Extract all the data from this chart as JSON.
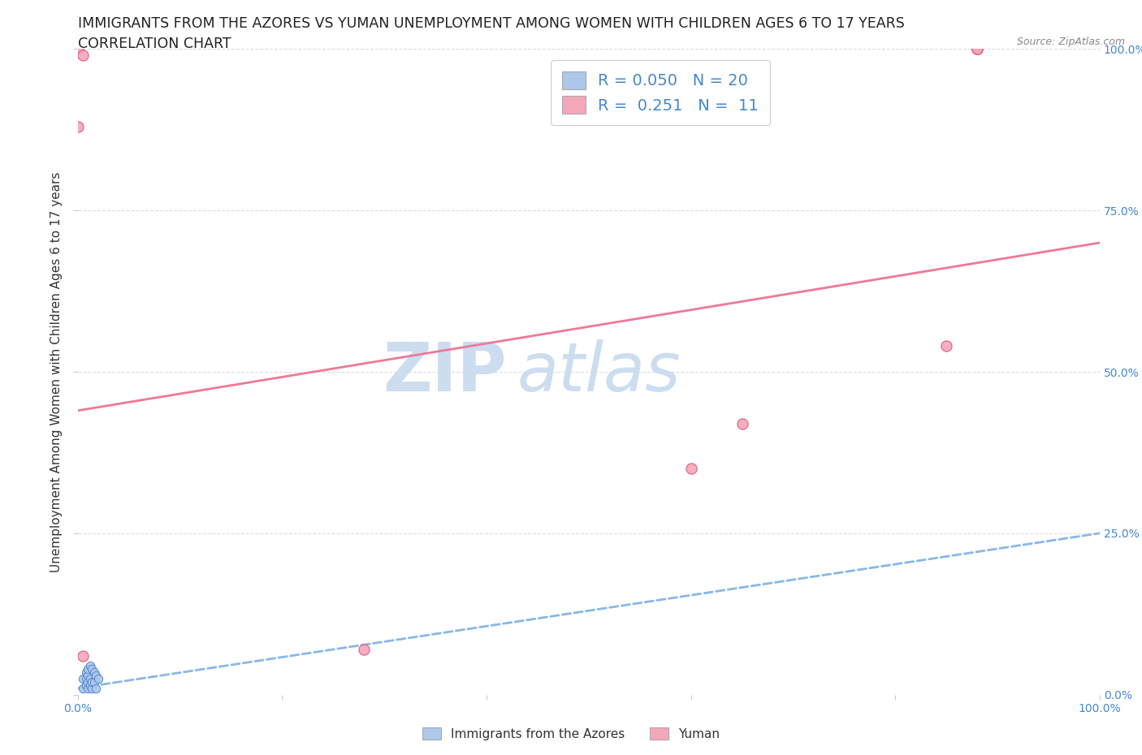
{
  "title_line1": "IMMIGRANTS FROM THE AZORES VS YUMAN UNEMPLOYMENT AMONG WOMEN WITH CHILDREN AGES 6 TO 17 YEARS",
  "title_line2": "CORRELATION CHART",
  "source_text": "Source: ZipAtlas.com",
  "ylabel": "Unemployment Among Women with Children Ages 6 to 17 years",
  "watermark_line1": "ZIP",
  "watermark_line2": "atlas",
  "xlim": [
    0.0,
    1.0
  ],
  "ylim": [
    0.0,
    1.0
  ],
  "xtick_positions": [
    0.0,
    0.2,
    0.4,
    0.6,
    0.8,
    1.0
  ],
  "xtick_labels": [
    "0.0%",
    "",
    "",
    "",
    "",
    "100.0%"
  ],
  "ytick_positions_right": [
    0.0,
    0.25,
    0.5,
    0.75,
    1.0
  ],
  "ytick_labels_right": [
    "0.0%",
    "25.0%",
    "50.0%",
    "75.0%",
    "100.0%"
  ],
  "legend_r1": "R = 0.050",
  "legend_n1": "N = 20",
  "legend_r2": "R = 0.251",
  "legend_n2": "N = 11",
  "color_azores": "#adc8eb",
  "color_azores_edge": "#5588cc",
  "color_yuman": "#f4a7b9",
  "color_yuman_edge": "#e05070",
  "color_trend_azores": "#88b8e8",
  "color_trend_yuman": "#f07898",
  "azores_x": [
    0.005,
    0.005,
    0.008,
    0.008,
    0.008,
    0.01,
    0.01,
    0.01,
    0.01,
    0.012,
    0.012,
    0.012,
    0.014,
    0.014,
    0.014,
    0.016,
    0.016,
    0.018,
    0.018,
    0.02
  ],
  "azores_y": [
    0.01,
    0.025,
    0.015,
    0.025,
    0.035,
    0.01,
    0.02,
    0.03,
    0.04,
    0.015,
    0.025,
    0.045,
    0.01,
    0.02,
    0.04,
    0.02,
    0.035,
    0.01,
    0.03,
    0.025
  ],
  "yuman_x": [
    0.0,
    0.0,
    0.005,
    0.005,
    0.28,
    0.6,
    0.65,
    0.85,
    0.88,
    0.88,
    0.88
  ],
  "yuman_y": [
    1.0,
    0.88,
    0.99,
    0.06,
    0.07,
    0.35,
    0.42,
    0.54,
    1.0,
    1.0,
    1.0
  ],
  "azores_trend_x": [
    0.0,
    1.0
  ],
  "azores_trend_y": [
    0.01,
    0.25
  ],
  "yuman_trend_x": [
    0.0,
    1.0
  ],
  "yuman_trend_y": [
    0.44,
    0.7
  ],
  "grid_color": "#dddddd",
  "background_color": "#ffffff",
  "title_fontsize": 12.5,
  "subtitle_fontsize": 12.5,
  "axis_label_fontsize": 11,
  "legend_fontsize": 14,
  "watermark_fontsize": 60,
  "watermark_color": "#ccddf0",
  "scatter_size_azores": 55,
  "scatter_size_yuman": 90,
  "trend_linewidth": 2.0,
  "trend_azores_style": "--",
  "trend_yuman_style": "-",
  "bottom_legend_labels": [
    "Immigrants from the Azores",
    "Yuman"
  ]
}
